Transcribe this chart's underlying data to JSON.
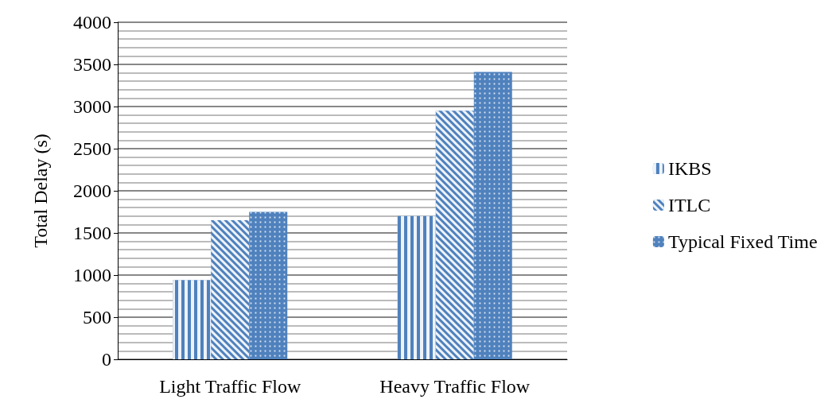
{
  "chart_data": {
    "type": "bar",
    "ylabel": "Total Delay (s)",
    "categories": [
      "Light Traffic Flow",
      "Heavy Traffic Flow"
    ],
    "series": [
      {
        "name": "IKBS",
        "color": "#4f81bd",
        "values": [
          940,
          1700
        ]
      },
      {
        "name": "ITLC",
        "color": "#4f81bd",
        "values": [
          1650,
          2950
        ]
      },
      {
        "name": "Typical Fixed Time",
        "color": "#4f81bd",
        "values": [
          1750,
          3410
        ]
      }
    ],
    "ylim": [
      0,
      4000
    ],
    "yticks": [
      0,
      500,
      1000,
      1500,
      2000,
      2500,
      3000,
      3500,
      4000
    ],
    "grid": "y",
    "legend": "right"
  }
}
